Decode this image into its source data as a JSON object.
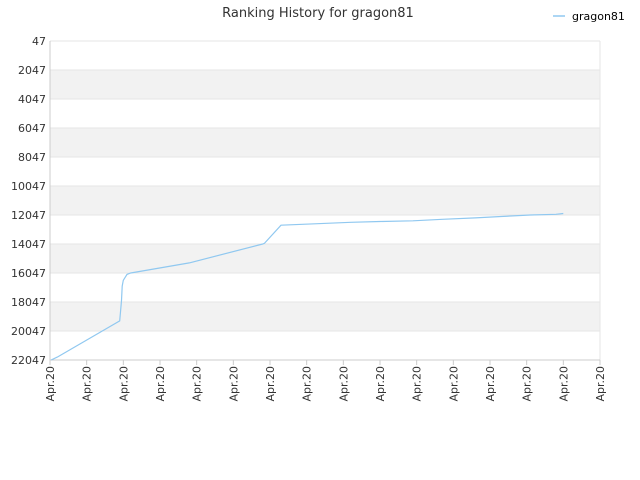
{
  "chart_data": {
    "type": "line",
    "title": "Ranking History for gragon81",
    "xlabel": "",
    "ylabel": "",
    "y_reversed": true,
    "ylim": [
      47,
      22047
    ],
    "y_ticks": [
      47,
      2047,
      4047,
      6047,
      8047,
      10047,
      12047,
      14047,
      16047,
      18047,
      20047,
      22047
    ],
    "x_tick_labels": [
      "Apr.20",
      "Apr.20",
      "Apr.20",
      "Apr.20",
      "Apr.20",
      "Apr.20",
      "Apr.20",
      "Apr.20",
      "Apr.20",
      "Apr.20",
      "Apr.20",
      "Apr.20",
      "Apr.20",
      "Apr.20",
      "Apr.20",
      "Apr.20"
    ],
    "xlim": [
      0,
      15
    ],
    "legend": {
      "position": "top-right"
    },
    "grid": true,
    "colors": {
      "series": "#90c8f0",
      "band": "#f2f2f2",
      "grid": "#e6e6e6",
      "axis": "#cccccc"
    },
    "series": [
      {
        "name": "gragon81",
        "x": [
          0.03,
          0.2,
          1.9,
          1.95,
          1.97,
          2.0,
          2.1,
          2.2,
          3.8,
          5.8,
          5.85,
          6.3,
          7.3,
          8.2,
          9.0,
          9.9,
          10.7,
          11.6,
          12.3,
          13.1,
          13.8,
          14.0
        ],
        "y": [
          22047,
          21850,
          19347,
          17950,
          16947,
          16550,
          16147,
          16047,
          15347,
          14047,
          13997,
          12747,
          12647,
          12547,
          12497,
          12447,
          12347,
          12247,
          12147,
          12047,
          11997,
          11947
        ]
      }
    ]
  }
}
